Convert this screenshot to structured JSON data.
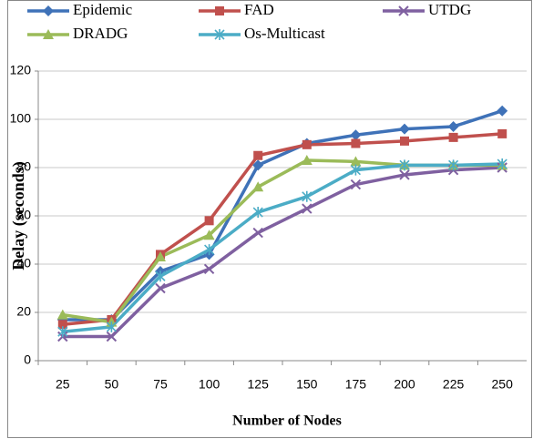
{
  "chart_data": {
    "type": "line",
    "y_label": "Delay (seconds)",
    "x_label": "Number of Nodes",
    "categories": [
      "25",
      "50",
      "75",
      "100",
      "125",
      "150",
      "175",
      "200",
      "225",
      "250"
    ],
    "series": [
      {
        "name": "Epidemic",
        "color": "#3f72b8",
        "marker": "diamond",
        "values": [
          17,
          17,
          37,
          44,
          81,
          90,
          93.5,
          96,
          97,
          103.5
        ]
      },
      {
        "name": "FAD",
        "color": "#c0504d",
        "marker": "square",
        "values": [
          15,
          17,
          44,
          58,
          85,
          89.5,
          90,
          91,
          92.5,
          94
        ]
      },
      {
        "name": "UTDG",
        "color": "#7f60a0",
        "marker": "x",
        "values": [
          10,
          10,
          30,
          38,
          53,
          63,
          73,
          77,
          79,
          80
        ]
      },
      {
        "name": "DRADG",
        "color": "#9bbb59",
        "marker": "triangle",
        "values": [
          19,
          16,
          43,
          52,
          72,
          83,
          82.5,
          81,
          81,
          81
        ]
      },
      {
        "name": "Os-Multicast",
        "color": "#4bacc6",
        "marker": "star",
        "values": [
          12,
          14,
          35,
          46,
          61.5,
          68,
          79,
          81,
          81,
          81.5
        ]
      }
    ],
    "ylim": [
      0,
      120
    ],
    "yticks": [
      0,
      20,
      40,
      60,
      80,
      100,
      120
    ],
    "grid": true,
    "legend": "top"
  }
}
